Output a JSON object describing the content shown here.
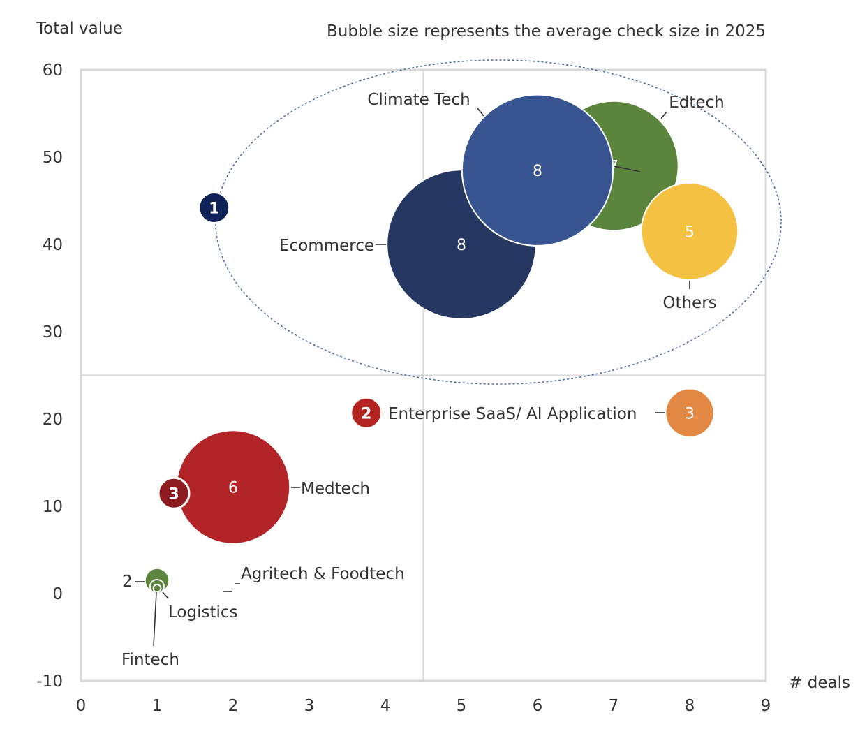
{
  "chart_data": {
    "type": "scatter",
    "subtype": "bubble",
    "ylabel": "Total value",
    "xlabel": "# deals",
    "subtitle": "Bubble size represents the average check size in 2025",
    "xlim": [
      0,
      9
    ],
    "ylim": [
      -10,
      60
    ],
    "xticks": [
      "0",
      "1",
      "2",
      "3",
      "4",
      "5",
      "6",
      "7",
      "8",
      "9"
    ],
    "yticks": [
      "-10",
      "0",
      "10",
      "20",
      "30",
      "40",
      "50",
      "60"
    ],
    "quadrant_x": 4.5,
    "quadrant_y": 25,
    "series": [
      {
        "name": "Ecommerce",
        "x": 5,
        "y": 40,
        "size": 114,
        "label": "8",
        "color": "#263761"
      },
      {
        "name": "Edtech",
        "x": 7,
        "y": 49,
        "size": 86,
        "label": "7",
        "color": "#5b843d"
      },
      {
        "name": "Climate Tech",
        "x": 6,
        "y": 48.5,
        "size": 117,
        "label": "8",
        "color": "#385491"
      },
      {
        "name": "Others",
        "x": 8,
        "y": 41.5,
        "size": 48,
        "label": "5",
        "color": "#f4c142"
      },
      {
        "name": "Enterprise SaaS/ AI Application",
        "x": 8,
        "y": 20.7,
        "size": 12,
        "label": "3",
        "color": "#e38842"
      },
      {
        "name": "Medtech",
        "x": 2,
        "y": 12.2,
        "size": 66,
        "label": "6",
        "color": "#b32428"
      },
      {
        "name": "Agritech & Foodtech",
        "x": 1,
        "y": 1.5,
        "size": 3,
        "label": "2",
        "color": "#5b843d"
      },
      {
        "name": "Logistics",
        "x": 1,
        "y": 0.8,
        "size": 1,
        "label": "",
        "color": "#5b843d"
      },
      {
        "name": "Fintech",
        "x": 1,
        "y": 0.6,
        "size": 0.3,
        "label": "",
        "color": "#5b843d"
      }
    ],
    "badges": [
      {
        "text": "1",
        "x": 1.75,
        "y": 44.2,
        "color": "#0e2258"
      },
      {
        "text": "2",
        "x": 3.75,
        "y": 20.7,
        "color": "#b32420"
      },
      {
        "text": "3",
        "x": 1.22,
        "y": 11.5,
        "color": "#8e1b1f"
      }
    ]
  }
}
